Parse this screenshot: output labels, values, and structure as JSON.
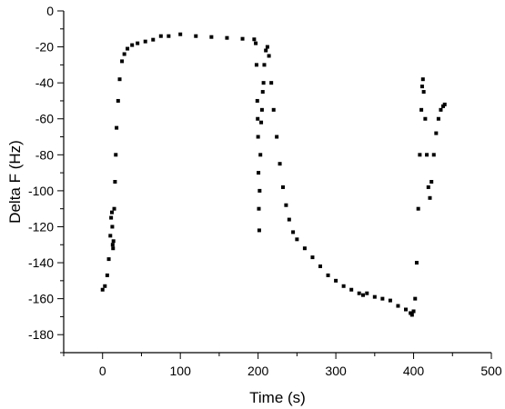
{
  "chart_data": {
    "type": "scatter",
    "title": "",
    "xlabel": "Time (s)",
    "ylabel": "Delta F (Hz)",
    "xlim": [
      -50,
      500
    ],
    "ylim": [
      -190,
      0
    ],
    "xticks": [
      0,
      100,
      200,
      300,
      400,
      500
    ],
    "yticks": [
      0,
      -20,
      -40,
      -60,
      -80,
      -100,
      -120,
      -140,
      -160,
      -180
    ],
    "grid": false,
    "legend": "none",
    "marker_color": "#000000",
    "series": [
      {
        "points": [
          [
            0,
            -155
          ],
          [
            3,
            -153
          ],
          [
            6,
            -147
          ],
          [
            8,
            -138
          ],
          [
            10,
            -125
          ],
          [
            11,
            -115
          ],
          [
            12,
            -112
          ],
          [
            12.5,
            -120
          ],
          [
            13,
            -130
          ],
          [
            13.5,
            -132
          ],
          [
            14,
            -128
          ],
          [
            15,
            -110
          ],
          [
            16,
            -95
          ],
          [
            17,
            -80
          ],
          [
            18,
            -65
          ],
          [
            20,
            -50
          ],
          [
            22,
            -38
          ],
          [
            25,
            -28
          ],
          [
            28,
            -24
          ],
          [
            32,
            -21
          ],
          [
            38,
            -19
          ],
          [
            45,
            -18
          ],
          [
            55,
            -17
          ],
          [
            65,
            -16
          ],
          [
            75,
            -14
          ],
          [
            85,
            -14
          ],
          [
            100,
            -13
          ],
          [
            120,
            -14
          ],
          [
            140,
            -14.5
          ],
          [
            160,
            -15
          ],
          [
            180,
            -15.5
          ],
          [
            195,
            -15.8
          ],
          [
            197,
            -18
          ],
          [
            198,
            -30
          ],
          [
            199,
            -50
          ],
          [
            199.5,
            -60
          ],
          [
            200,
            -70
          ],
          [
            200.5,
            -90
          ],
          [
            201,
            -110
          ],
          [
            201.5,
            -122
          ],
          [
            202,
            -100
          ],
          [
            203,
            -80
          ],
          [
            204,
            -62
          ],
          [
            205,
            -55
          ],
          [
            206,
            -45
          ],
          [
            207,
            -40
          ],
          [
            208,
            -30
          ],
          [
            210,
            -22
          ],
          [
            212,
            -20
          ],
          [
            214,
            -25
          ],
          [
            217,
            -40
          ],
          [
            220,
            -55
          ],
          [
            224,
            -70
          ],
          [
            228,
            -85
          ],
          [
            232,
            -98
          ],
          [
            236,
            -108
          ],
          [
            240,
            -116
          ],
          [
            245,
            -123
          ],
          [
            250,
            -127
          ],
          [
            260,
            -132
          ],
          [
            270,
            -137
          ],
          [
            280,
            -142
          ],
          [
            290,
            -147
          ],
          [
            300,
            -150
          ],
          [
            310,
            -153
          ],
          [
            320,
            -155
          ],
          [
            330,
            -157
          ],
          [
            335,
            -158
          ],
          [
            340,
            -157
          ],
          [
            350,
            -159
          ],
          [
            360,
            -160
          ],
          [
            370,
            -161
          ],
          [
            380,
            -164
          ],
          [
            390,
            -166
          ],
          [
            396,
            -168
          ],
          [
            398,
            -169
          ],
          [
            400,
            -167
          ],
          [
            402,
            -160
          ],
          [
            404,
            -140
          ],
          [
            406,
            -110
          ],
          [
            408,
            -80
          ],
          [
            410,
            -55
          ],
          [
            411,
            -42
          ],
          [
            412,
            -38
          ],
          [
            413,
            -45
          ],
          [
            415,
            -60
          ],
          [
            417,
            -80
          ],
          [
            419,
            -98
          ],
          [
            421,
            -104
          ],
          [
            423,
            -95
          ],
          [
            426,
            -80
          ],
          [
            429,
            -68
          ],
          [
            432,
            -60
          ],
          [
            435,
            -55
          ],
          [
            438,
            -53
          ],
          [
            440,
            -52
          ]
        ]
      }
    ]
  }
}
